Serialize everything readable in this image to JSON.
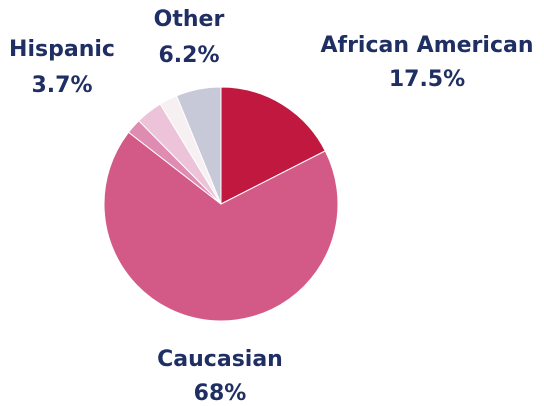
{
  "chart_data": {
    "type": "pie",
    "slices": [
      {
        "label": "African American",
        "value_label": "17.5%",
        "value": 17.5,
        "color": "#c0183f"
      },
      {
        "label": "Caucasian",
        "value_label": "68%",
        "value": 68,
        "color": "#d35a87"
      },
      {
        "label": "",
        "value_label": "",
        "value": 2.1,
        "color": "#df8cb2"
      },
      {
        "label": "Hispanic",
        "value_label": "3.7%",
        "value": 3.7,
        "color": "#ecc3d8"
      },
      {
        "label": "",
        "value_label": "",
        "value": 2.5,
        "color": "#f6f0f3"
      },
      {
        "label": "Other",
        "value_label": "6.2%",
        "value": 6.2,
        "color": "#c8c9d8"
      }
    ]
  },
  "text_color": "#1f2f63"
}
